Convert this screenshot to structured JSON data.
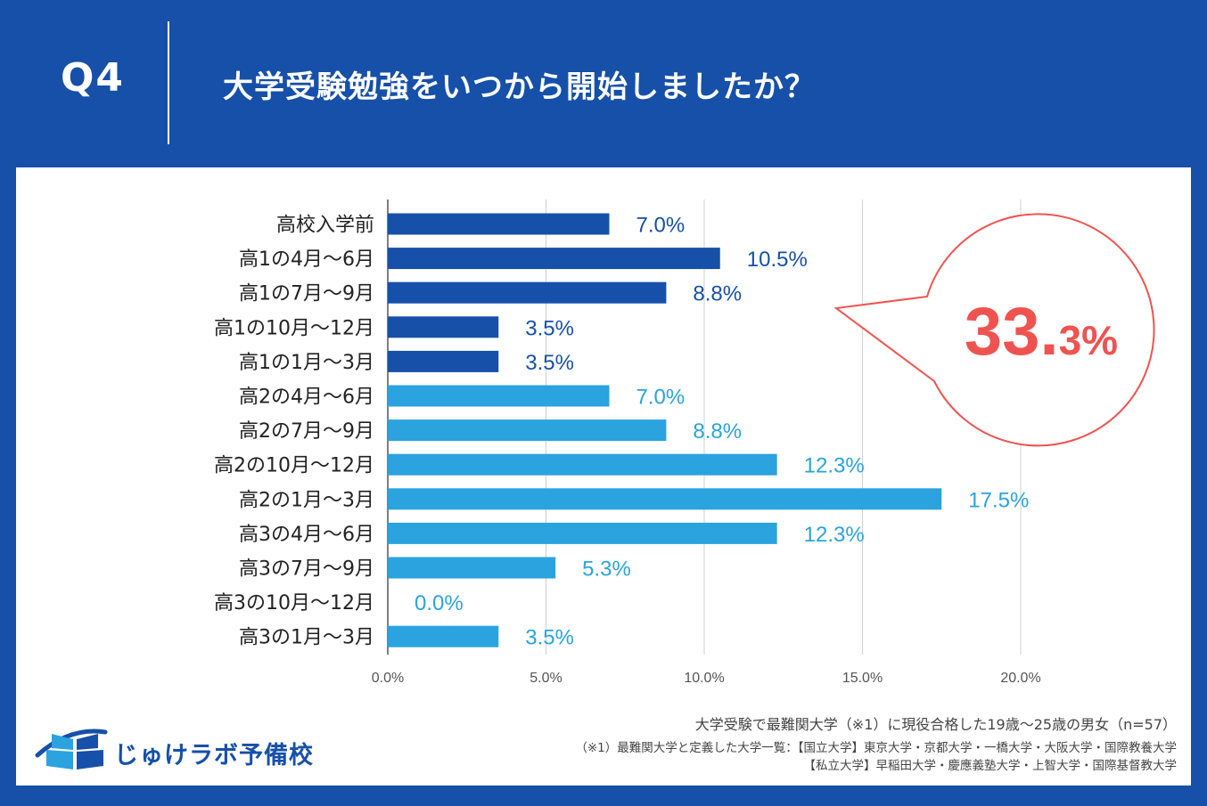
{
  "header": {
    "q_number": "Q4",
    "question": "大学受験勉強をいつから開始しましたか？"
  },
  "chart_data": {
    "type": "bar",
    "orientation": "horizontal",
    "title": "大学受験勉強をいつから開始しましたか？",
    "categories": [
      "高校入学前",
      "高1の4月～6月",
      "高1の7月～9月",
      "高1の10月～12月",
      "高1の1月～3月",
      "高2の4月～6月",
      "高2の7月～9月",
      "高2の10月～12月",
      "高2の1月～3月",
      "高3の4月～6月",
      "高3の7月～9月",
      "高3の10月～12月",
      "高3の1月～3月"
    ],
    "values": [
      7.0,
      10.5,
      8.8,
      3.5,
      3.5,
      7.0,
      8.8,
      12.3,
      17.5,
      12.3,
      5.3,
      0.0,
      3.5
    ],
    "value_labels": [
      "7.0%",
      "10.5%",
      "8.8%",
      "3.5%",
      "3.5%",
      "7.0%",
      "8.8%",
      "12.3%",
      "17.5%",
      "12.3%",
      "5.3%",
      "0.0%",
      "3.5%"
    ],
    "colors": [
      "#1650a9",
      "#1650a9",
      "#1650a9",
      "#1650a9",
      "#1650a9",
      "#2aa3df",
      "#2aa3df",
      "#2aa3df",
      "#2aa3df",
      "#2aa3df",
      "#2aa3df",
      "#2aa3df",
      "#2aa3df"
    ],
    "xlim": [
      0,
      22.5
    ],
    "xticks": [
      0,
      5,
      10,
      15,
      20
    ],
    "xtick_labels": [
      "0.0%",
      "5.0%",
      "10.0%",
      "15.0%",
      "20.0%"
    ],
    "grid": true,
    "callout": {
      "value_main": "33.",
      "value_small": "3%",
      "color": "#ef5350"
    }
  },
  "footer": {
    "logo_text": "じゅけラボ予備校",
    "note_line1": "大学受験で最難関大学（※1）に現役合格した19歳～25歳の男女（n=57）",
    "note_line2": "（※1）最難関大学と定義した大学一覧：【国立大学】東京大学・京都大学・一橋大学・大阪大学・国際教養大学",
    "note_line3": "【私立大学】早稲田大学・慶應義塾大学・上智大学・国際基督教大学"
  },
  "colors": {
    "brand_blue": "#1650a9",
    "light_blue": "#2aa3df",
    "accent_red": "#ef5350"
  }
}
